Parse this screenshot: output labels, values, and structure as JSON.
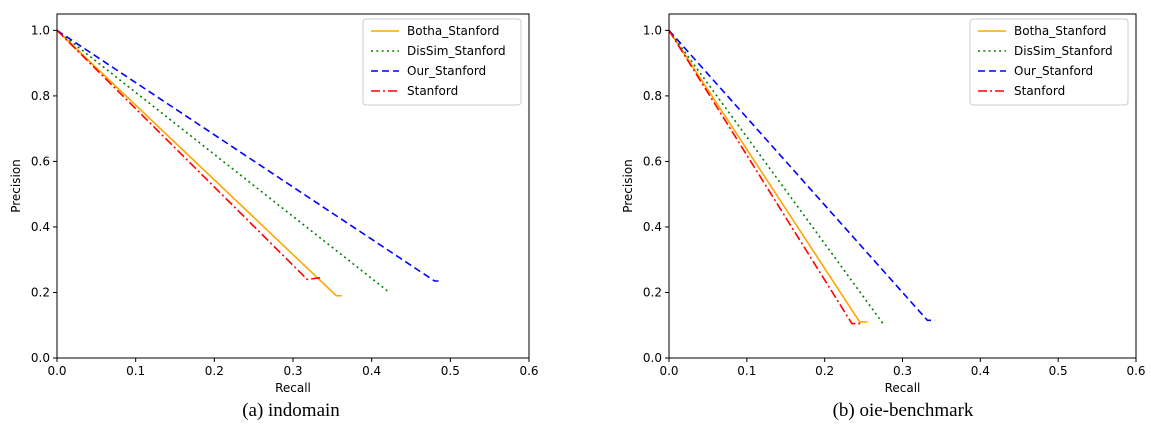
{
  "chart_data": [
    {
      "type": "line",
      "caption": "(a) indomain",
      "xlabel": "Recall",
      "ylabel": "Precision",
      "xlim": [
        0,
        0.6
      ],
      "ylim": [
        0,
        1.05
      ],
      "xticks": [
        "0.0",
        "0.1",
        "0.2",
        "0.3",
        "0.4",
        "0.5",
        "0.6"
      ],
      "yticks": [
        "0.0",
        "0.2",
        "0.4",
        "0.6",
        "0.8",
        "1.0"
      ],
      "grid": false,
      "legend_position": "top-right",
      "series": [
        {
          "name": "Botha_Stanford",
          "color": "#ffa500",
          "style": "solid",
          "points": [
            [
              0,
              1.0
            ],
            [
              0.355,
              0.19
            ],
            [
              0.362,
              0.19
            ]
          ]
        },
        {
          "name": "DisSim_Stanford",
          "color": "#008000",
          "style": "dotted",
          "points": [
            [
              0,
              1.0
            ],
            [
              0.42,
              0.205
            ],
            [
              0.422,
              0.205
            ]
          ]
        },
        {
          "name": "Our_Stanford",
          "color": "#0000ff",
          "style": "dashed",
          "points": [
            [
              0,
              1.0
            ],
            [
              0.48,
              0.235
            ],
            [
              0.485,
              0.235
            ]
          ]
        },
        {
          "name": "Stanford",
          "color": "#ff0000",
          "style": "dashdot",
          "points": [
            [
              0,
              1.0
            ],
            [
              0.318,
              0.24
            ],
            [
              0.335,
              0.245
            ]
          ]
        }
      ]
    },
    {
      "type": "line",
      "caption": "(b) oie-benchmark",
      "xlabel": "Recall",
      "ylabel": "Precision",
      "xlim": [
        0,
        0.6
      ],
      "ylim": [
        0,
        1.05
      ],
      "xticks": [
        "0.0",
        "0.1",
        "0.2",
        "0.3",
        "0.4",
        "0.5",
        "0.6"
      ],
      "yticks": [
        "0.0",
        "0.2",
        "0.4",
        "0.6",
        "0.8",
        "1.0"
      ],
      "grid": false,
      "legend_position": "top-right",
      "series": [
        {
          "name": "Botha_Stanford",
          "color": "#ffa500",
          "style": "solid",
          "points": [
            [
              0,
              1.0
            ],
            [
              0.245,
              0.11
            ],
            [
              0.255,
              0.11
            ]
          ]
        },
        {
          "name": "DisSim_Stanford",
          "color": "#008000",
          "style": "dotted",
          "points": [
            [
              0,
              1.0
            ],
            [
              0.275,
              0.105
            ]
          ]
        },
        {
          "name": "Our_Stanford",
          "color": "#0000ff",
          "style": "dashed",
          "points": [
            [
              0,
              1.0
            ],
            [
              0.332,
              0.115
            ],
            [
              0.342,
              0.115
            ]
          ]
        },
        {
          "name": "Stanford",
          "color": "#ff0000",
          "style": "dashdot",
          "points": [
            [
              0,
              1.0
            ],
            [
              0.235,
              0.105
            ],
            [
              0.247,
              0.105
            ]
          ]
        }
      ]
    }
  ]
}
